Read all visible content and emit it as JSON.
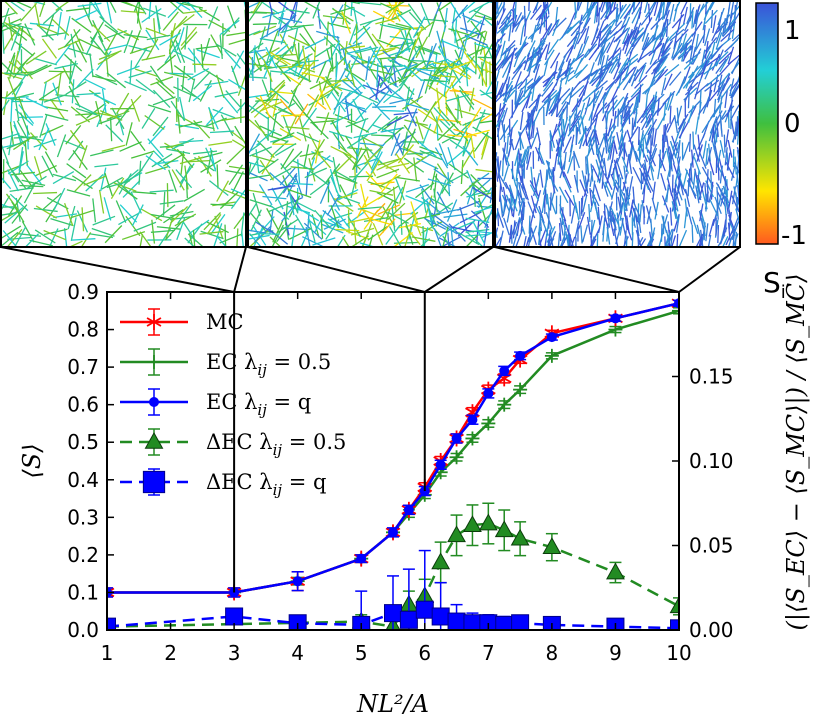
{
  "chart_data": {
    "type": "line",
    "title": "",
    "xlabel": "NL²/A",
    "ylabel": "⟨S⟩",
    "y2label": "(|⟨S_EC⟩ − ⟨S_MC⟩|) / ⟨S_MC⟩",
    "xlim": [
      1,
      10
    ],
    "ylim": [
      0,
      0.9
    ],
    "y2lim": [
      0,
      0.2
    ],
    "x_ticks": [
      "1",
      "2",
      "3",
      "4",
      "5",
      "6",
      "7",
      "8",
      "9",
      "10"
    ],
    "y_ticks": [
      "0.0",
      "0.1",
      "0.2",
      "0.3",
      "0.4",
      "0.5",
      "0.6",
      "0.7",
      "0.8",
      "0.9"
    ],
    "y2_ticks": [
      "0.00",
      "0.05",
      "0.10",
      "0.15"
    ],
    "legend_position": "top-left",
    "series": [
      {
        "name": "MC",
        "legend": "MC",
        "color": "#ff0000",
        "marker": "star",
        "axis": "left",
        "x": [
          1,
          3,
          4,
          5,
          5.5,
          5.75,
          6,
          6.25,
          6.5,
          6.75,
          7,
          7.25,
          7.5,
          8,
          9,
          10
        ],
        "y": [
          0.1,
          0.1,
          0.13,
          0.19,
          0.26,
          0.32,
          0.38,
          0.45,
          0.51,
          0.58,
          0.64,
          0.67,
          0.72,
          0.79,
          0.83,
          0.87
        ],
        "err": [
          0.012,
          0.012,
          0.025,
          0.01,
          0.01,
          0.012,
          0.012,
          0.012,
          0.012,
          0.012,
          0.012,
          0.012,
          0.01,
          0.008,
          0.008,
          0.008
        ]
      },
      {
        "name": "EC λij = 0.5",
        "legend": "EC λ",
        "legend_sub": "ij",
        "legend_tail": " = 0.5",
        "color": "#228b22",
        "marker": "plus",
        "axis": "left",
        "x": [
          1,
          3,
          4,
          5,
          5.5,
          5.75,
          6,
          6.25,
          6.5,
          6.75,
          7,
          7.25,
          7.5,
          8,
          9,
          10
        ],
        "y": [
          0.1,
          0.1,
          0.13,
          0.19,
          0.26,
          0.31,
          0.36,
          0.42,
          0.46,
          0.51,
          0.55,
          0.6,
          0.64,
          0.73,
          0.8,
          0.85
        ],
        "err": [
          0.008,
          0.008,
          0.01,
          0.01,
          0.01,
          0.01,
          0.01,
          0.01,
          0.01,
          0.01,
          0.01,
          0.01,
          0.01,
          0.008,
          0.008,
          0.008
        ]
      },
      {
        "name": "EC λij = q",
        "legend": "EC λ",
        "legend_sub": "ij",
        "legend_tail": " = q",
        "color": "#0000ff",
        "marker": "dot",
        "axis": "left",
        "x": [
          1,
          3,
          4,
          5,
          5.5,
          5.75,
          6,
          6.25,
          6.5,
          6.75,
          7,
          7.25,
          7.5,
          8,
          9,
          10
        ],
        "y": [
          0.1,
          0.1,
          0.13,
          0.19,
          0.26,
          0.32,
          0.37,
          0.44,
          0.51,
          0.56,
          0.63,
          0.69,
          0.73,
          0.78,
          0.83,
          0.87
        ],
        "err": [
          0.012,
          0.012,
          0.025,
          0.01,
          0.012,
          0.012,
          0.012,
          0.012,
          0.012,
          0.012,
          0.012,
          0.012,
          0.01,
          0.008,
          0.008,
          0.008
        ]
      },
      {
        "name": "ΔEC λij = 0.5",
        "legend": "ΔEC λ",
        "legend_sub": "ij",
        "legend_tail": " = 0.5",
        "color": "#228b22",
        "marker": "triangle",
        "dashed": true,
        "axis": "right",
        "x": [
          1,
          5,
          5.5,
          5.75,
          6,
          6.25,
          6.5,
          6.75,
          7,
          7.25,
          7.5,
          8,
          9,
          10
        ],
        "y": [
          0.002,
          0.005,
          0.002,
          0.015,
          0.02,
          0.04,
          0.056,
          0.062,
          0.063,
          0.059,
          0.054,
          0.049,
          0.034,
          0.014
        ],
        "err": [
          0.003,
          0.004,
          0.005,
          0.008,
          0.01,
          0.012,
          0.012,
          0.012,
          0.012,
          0.012,
          0.01,
          0.008,
          0.006,
          0.005
        ]
      },
      {
        "name": "ΔEC λij = q",
        "legend": "ΔEC λ",
        "legend_sub": "ij",
        "legend_tail": " = q",
        "color": "#0000ff",
        "marker": "square",
        "dashed": true,
        "axis": "right",
        "x": [
          1,
          3,
          4,
          5,
          5.5,
          5.75,
          6,
          6.25,
          6.5,
          6.75,
          7,
          7.25,
          7.5,
          8,
          9,
          10
        ],
        "y": [
          0.002,
          0.008,
          0.004,
          0.003,
          0.01,
          0.006,
          0.012,
          0.008,
          0.005,
          0.004,
          0.004,
          0.003,
          0.004,
          0.003,
          0.002,
          0.001
        ],
        "err": [
          0.002,
          0.003,
          0.003,
          0.02,
          0.022,
          0.03,
          0.035,
          0.02,
          0.01,
          0.006,
          0.005,
          0.005,
          0.004,
          0.002,
          0.002,
          0.002
        ]
      }
    ],
    "insets": [
      {
        "name": "inset-low-density",
        "x_at": 3,
        "base": 0.1,
        "spread": 0.35,
        "density": 1.0
      },
      {
        "name": "inset-transition",
        "x_at": 6,
        "base": 0.15,
        "spread": 0.55,
        "density": 1.6
      },
      {
        "name": "inset-nematic",
        "x_at": 10,
        "base": 0.85,
        "spread": 0.18,
        "density": 2.6
      }
    ],
    "colorbar": {
      "label": "S",
      "label_sub": "i",
      "ticks": [
        "1",
        "0",
        "-1"
      ],
      "range": [
        -1,
        1
      ]
    }
  }
}
